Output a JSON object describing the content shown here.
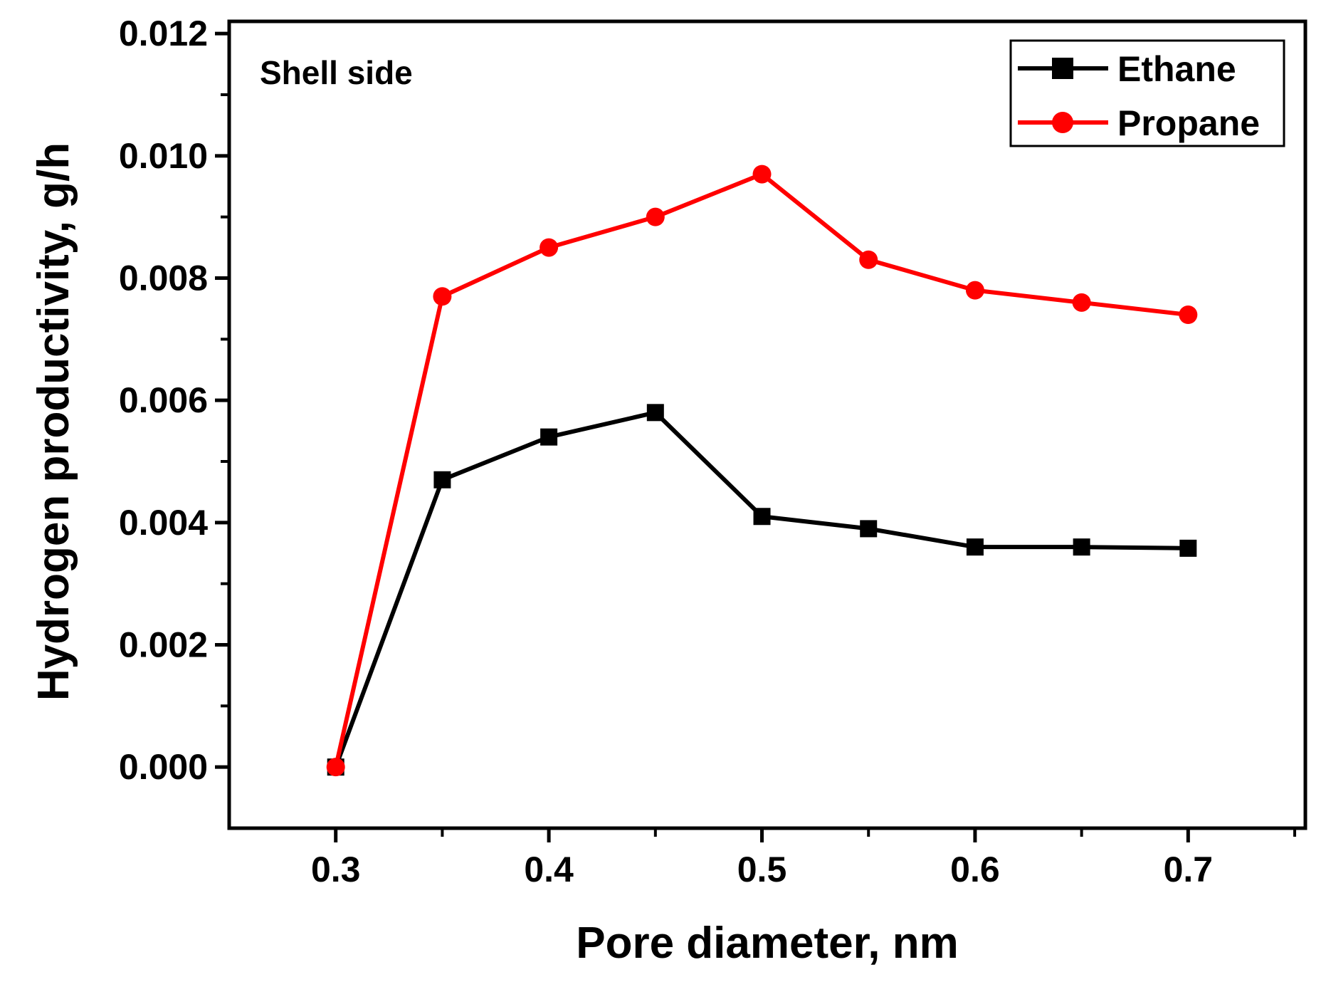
{
  "chart_data": {
    "type": "line",
    "title": "",
    "xlabel": "Pore diameter, nm",
    "ylabel": "Hydrogen productivity, g/h",
    "annotation": "Shell side",
    "xlim": [
      0.25,
      0.755
    ],
    "ylim": [
      -0.001,
      0.0122
    ],
    "x_ticks": [
      0.3,
      0.4,
      0.5,
      0.6,
      0.7
    ],
    "x_tick_labels": [
      "0.3",
      "0.4",
      "0.5",
      "0.6",
      "0.7"
    ],
    "y_ticks": [
      0.0,
      0.002,
      0.004,
      0.006,
      0.008,
      0.01,
      0.012
    ],
    "y_tick_labels": [
      "0.000",
      "0.002",
      "0.004",
      "0.006",
      "0.008",
      "0.010",
      "0.012"
    ],
    "grid": false,
    "legend_position": "top-right",
    "x": [
      0.3,
      0.35,
      0.4,
      0.45,
      0.5,
      0.55,
      0.6,
      0.65,
      0.7
    ],
    "series": [
      {
        "name": "Ethane",
        "color": "#000000",
        "marker": "square",
        "values": [
          0.0,
          0.0047,
          0.0054,
          0.0058,
          0.0041,
          0.0039,
          0.0036,
          0.0036,
          0.00358
        ]
      },
      {
        "name": "Propane",
        "color": "#ff0000",
        "marker": "circle",
        "values": [
          0.0,
          0.0077,
          0.0085,
          0.009,
          0.0097,
          0.0083,
          0.0078,
          0.0076,
          0.0074
        ]
      }
    ]
  }
}
